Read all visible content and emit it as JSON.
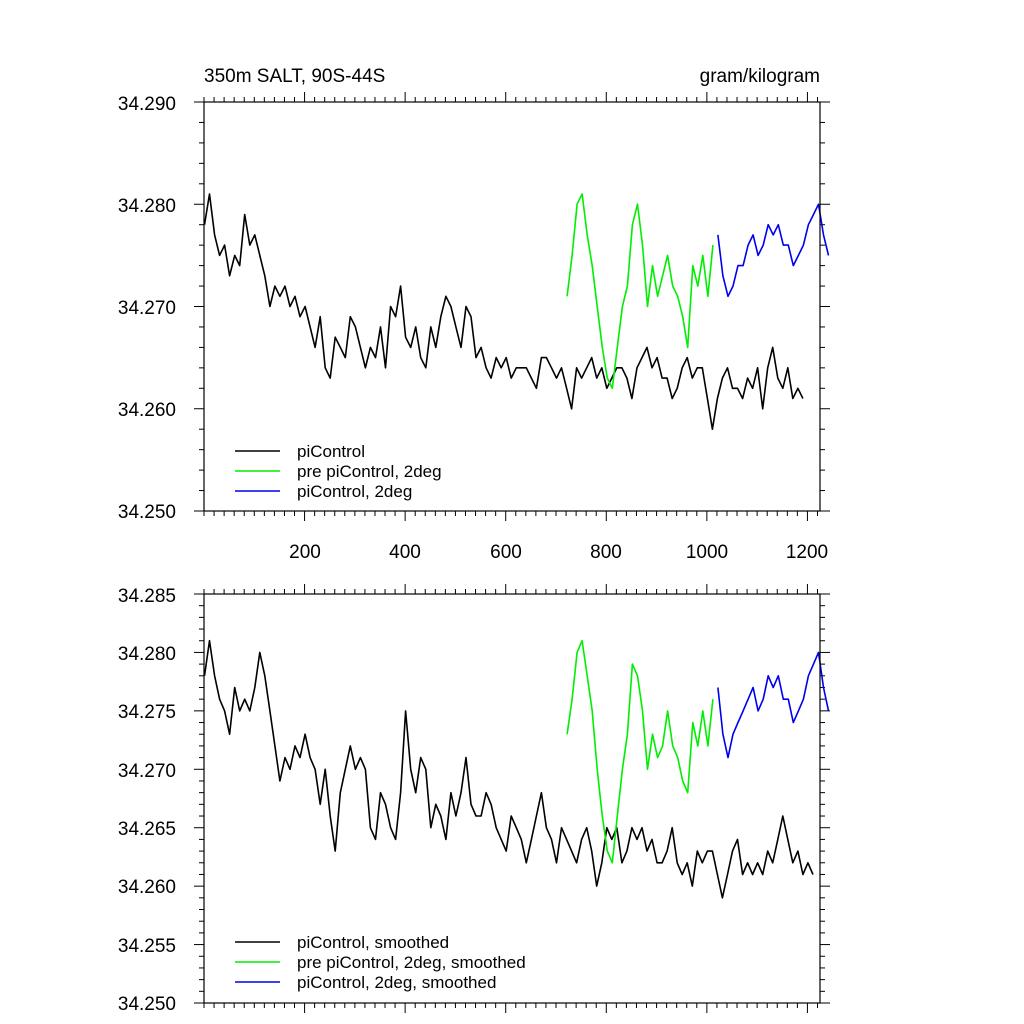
{
  "chart_data": [
    {
      "type": "line",
      "title": "350m SALT, 90S-44S",
      "units": "gram/kilogram",
      "xlim": [
        0,
        1225
      ],
      "ylim": [
        34.25,
        34.29
      ],
      "xticks": [
        200,
        400,
        600,
        800,
        1000,
        1200
      ],
      "xtick_labels": [
        "200",
        "400",
        "600",
        "800",
        "1000",
        "1200"
      ],
      "yticks": [
        34.25,
        34.26,
        34.27,
        34.28,
        34.29
      ],
      "ytick_labels": [
        "34.250",
        "34.260",
        "34.270",
        "34.280",
        "34.290"
      ],
      "legend": {
        "position": "bottom-left",
        "entries": [
          "piControl",
          "pre piControl, 2deg",
          "piControl, 2deg"
        ]
      },
      "series": [
        {
          "name": "piControl",
          "color": "#000000",
          "x_start": 1,
          "x_step": 10,
          "values": [
            34.278,
            34.281,
            34.277,
            34.275,
            34.276,
            34.273,
            34.275,
            34.274,
            34.279,
            34.276,
            34.277,
            34.275,
            34.273,
            34.27,
            34.272,
            34.271,
            34.272,
            34.27,
            34.271,
            34.269,
            34.27,
            34.268,
            34.266,
            34.269,
            34.264,
            34.263,
            34.267,
            34.266,
            34.265,
            34.269,
            34.268,
            34.266,
            34.264,
            34.266,
            34.265,
            34.268,
            34.264,
            34.27,
            34.269,
            34.272,
            34.267,
            34.266,
            34.268,
            34.265,
            34.264,
            34.268,
            34.266,
            34.269,
            34.271,
            34.27,
            34.268,
            34.266,
            34.27,
            34.269,
            34.265,
            34.266,
            34.264,
            34.263,
            34.265,
            34.264,
            34.265,
            34.263,
            34.264,
            34.264,
            34.264,
            34.263,
            34.262,
            34.265,
            34.265,
            34.264,
            34.263,
            34.264,
            34.262,
            34.26,
            34.264,
            34.263,
            34.264,
            34.265,
            34.263,
            34.264,
            34.262,
            34.263,
            34.264,
            34.264,
            34.263,
            34.261,
            34.264,
            34.265,
            34.266,
            34.264,
            34.265,
            34.263,
            34.263,
            34.261,
            34.262,
            34.264,
            34.265,
            34.263,
            34.264,
            34.264,
            34.261,
            34.258,
            34.261,
            34.263,
            34.264,
            34.262,
            34.262,
            34.261,
            34.263,
            34.262,
            34.264,
            34.26,
            34.264,
            34.266,
            34.263,
            34.262,
            34.264,
            34.261,
            34.262,
            34.261
          ]
        },
        {
          "name": "pre piControl, 2deg",
          "color": "#00ee00",
          "x_start": 722,
          "x_step": 10,
          "values": [
            34.271,
            34.275,
            34.28,
            34.281,
            34.277,
            34.274,
            34.27,
            34.266,
            34.263,
            34.262,
            34.266,
            34.27,
            34.272,
            34.278,
            34.28,
            34.276,
            34.27,
            34.274,
            34.271,
            34.273,
            34.275,
            34.272,
            34.271,
            34.269,
            34.266,
            34.274,
            34.272,
            34.275,
            34.271,
            34.276
          ]
        },
        {
          "name": "piControl, 2deg",
          "color": "#0000ee",
          "x_start": 1022,
          "x_step": 10,
          "values": [
            34.277,
            34.273,
            34.271,
            34.272,
            34.274,
            34.274,
            34.276,
            34.277,
            34.275,
            34.276,
            34.278,
            34.277,
            34.278,
            34.276,
            34.276,
            34.274,
            34.275,
            34.276,
            34.278,
            34.279,
            34.28,
            34.277,
            34.275
          ]
        }
      ]
    },
    {
      "type": "line",
      "title": "",
      "xlim": [
        0,
        1225
      ],
      "ylim": [
        34.25,
        34.285
      ],
      "xticks": [
        200,
        400,
        600,
        800,
        1000,
        1200
      ],
      "yticks": [
        34.25,
        34.255,
        34.26,
        34.265,
        34.27,
        34.275,
        34.28,
        34.285
      ],
      "ytick_labels": [
        "34.250",
        "34.255",
        "34.260",
        "34.265",
        "34.270",
        "34.275",
        "34.280",
        "34.285"
      ],
      "legend": {
        "position": "bottom-left",
        "entries": [
          "piControl, smoothed",
          "pre piControl, 2deg, smoothed",
          "piControl, 2deg, smoothed"
        ]
      },
      "series": [
        {
          "name": "piControl, smoothed",
          "color": "#000000",
          "x_start": 1,
          "x_step": 10,
          "values": [
            34.278,
            34.281,
            34.278,
            34.276,
            34.275,
            34.273,
            34.277,
            34.275,
            34.276,
            34.275,
            34.277,
            34.28,
            34.278,
            34.275,
            34.272,
            34.269,
            34.271,
            34.27,
            34.272,
            34.271,
            34.273,
            34.271,
            34.27,
            34.267,
            34.27,
            34.266,
            34.263,
            34.268,
            34.27,
            34.272,
            34.27,
            34.271,
            34.27,
            34.265,
            34.264,
            34.268,
            34.267,
            34.265,
            34.264,
            34.268,
            34.275,
            34.27,
            34.268,
            34.271,
            34.27,
            34.265,
            34.267,
            34.266,
            34.264,
            34.268,
            34.266,
            34.268,
            34.271,
            34.267,
            34.266,
            34.266,
            34.268,
            34.267,
            34.265,
            34.264,
            34.263,
            34.266,
            34.265,
            34.264,
            34.262,
            34.264,
            34.266,
            34.268,
            34.265,
            34.264,
            34.262,
            34.265,
            34.264,
            34.263,
            34.262,
            34.264,
            34.265,
            34.263,
            34.26,
            34.262,
            34.265,
            34.264,
            34.265,
            34.262,
            34.263,
            34.265,
            34.264,
            34.265,
            34.263,
            34.264,
            34.262,
            34.262,
            34.263,
            34.265,
            34.262,
            34.261,
            34.262,
            34.26,
            34.263,
            34.262,
            34.263,
            34.263,
            34.261,
            34.259,
            34.261,
            34.263,
            34.264,
            34.261,
            34.262,
            34.261,
            34.262,
            34.261,
            34.263,
            34.262,
            34.264,
            34.266,
            34.264,
            34.262,
            34.263,
            34.261,
            34.262,
            34.261
          ]
        },
        {
          "name": "pre piControl, 2deg, smoothed",
          "color": "#00ee00",
          "x_start": 722,
          "x_step": 10,
          "values": [
            34.273,
            34.276,
            34.28,
            34.281,
            34.278,
            34.275,
            34.27,
            34.266,
            34.263,
            34.262,
            34.266,
            34.27,
            34.273,
            34.279,
            34.278,
            34.275,
            34.27,
            34.273,
            34.271,
            34.272,
            34.275,
            34.272,
            34.271,
            34.269,
            34.268,
            34.274,
            34.272,
            34.275,
            34.272,
            34.276
          ]
        },
        {
          "name": "piControl, 2deg, smoothed",
          "color": "#0000ee",
          "x_start": 1022,
          "x_step": 10,
          "values": [
            34.277,
            34.273,
            34.271,
            34.273,
            34.274,
            34.275,
            34.276,
            34.277,
            34.275,
            34.276,
            34.278,
            34.277,
            34.278,
            34.276,
            34.276,
            34.274,
            34.275,
            34.276,
            34.278,
            34.279,
            34.28,
            34.277,
            34.275
          ]
        }
      ]
    }
  ]
}
